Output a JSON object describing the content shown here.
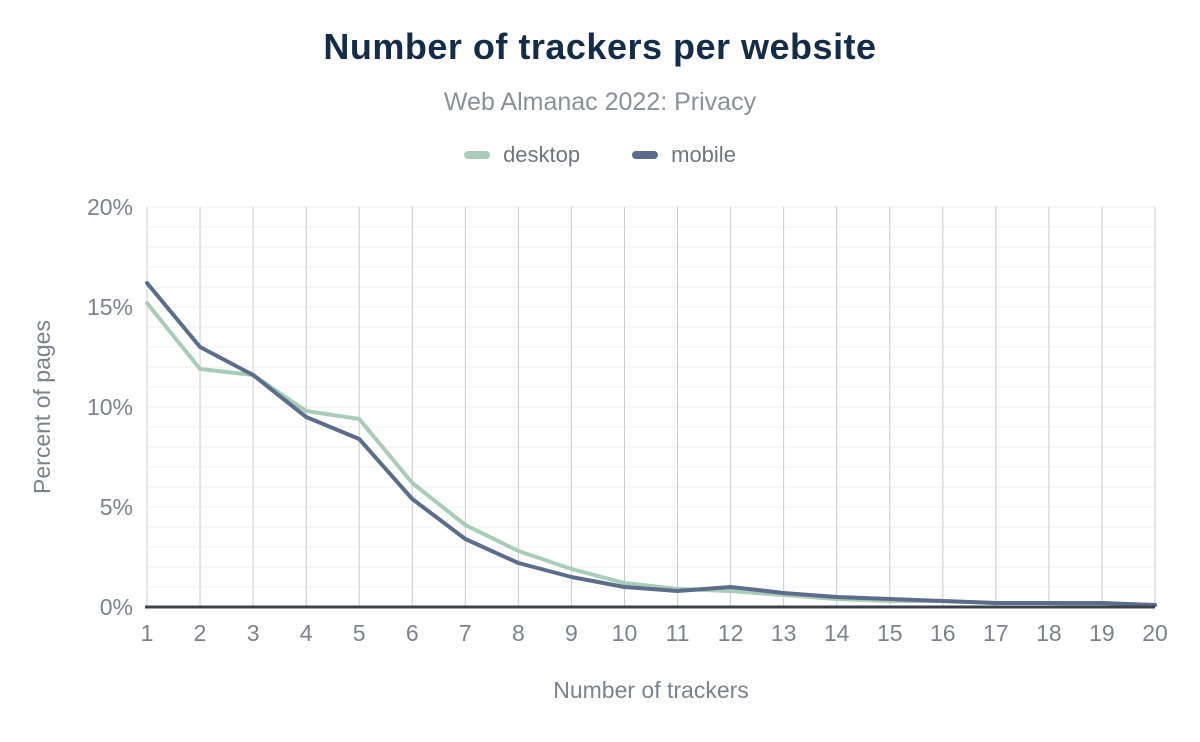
{
  "header": {
    "title": "Number of trackers per website",
    "subtitle": "Web Almanac 2022: Privacy"
  },
  "chart_data": {
    "type": "line",
    "title": "Number of trackers per website",
    "subtitle": "Web Almanac 2022: Privacy",
    "xlabel": "Number of trackers",
    "ylabel": "Percent of pages",
    "categories": [
      "1",
      "2",
      "3",
      "4",
      "5",
      "6",
      "7",
      "8",
      "9",
      "10",
      "11",
      "12",
      "13",
      "14",
      "15",
      "16",
      "17",
      "18",
      "19",
      "20"
    ],
    "series": [
      {
        "name": "desktop",
        "color": "#a9ccb8",
        "values": [
          15.2,
          11.9,
          11.6,
          9.8,
          9.4,
          6.2,
          4.1,
          2.8,
          1.9,
          1.2,
          0.9,
          0.8,
          0.6,
          0.4,
          0.3,
          0.3,
          0.2,
          0.2,
          0.1,
          0.1
        ]
      },
      {
        "name": "mobile",
        "color": "#5b6d8b",
        "values": [
          16.2,
          13.0,
          11.6,
          9.5,
          8.4,
          5.4,
          3.4,
          2.2,
          1.5,
          1.0,
          0.8,
          1.0,
          0.7,
          0.5,
          0.4,
          0.3,
          0.2,
          0.2,
          0.2,
          0.1
        ]
      }
    ],
    "ylim": [
      0,
      20
    ],
    "yticks": [
      0,
      5,
      10,
      15,
      20
    ],
    "ytick_labels": [
      "0%",
      "5%",
      "10%",
      "15%",
      "20%"
    ],
    "legend_position": "top",
    "grid": "vertical lines at every x tick; faint horizontal lines every 1%"
  },
  "colors": {
    "background": "#ffffff",
    "title": "#152c49",
    "subtitle": "#8a9096",
    "axis_text": "#7c828a",
    "grid_vertical": "#cbcbcb",
    "grid_horizontal": "#f1f1f1",
    "axis_line": "#3b424c",
    "desktop": "#a9ccb8",
    "mobile": "#5b6d8b"
  }
}
